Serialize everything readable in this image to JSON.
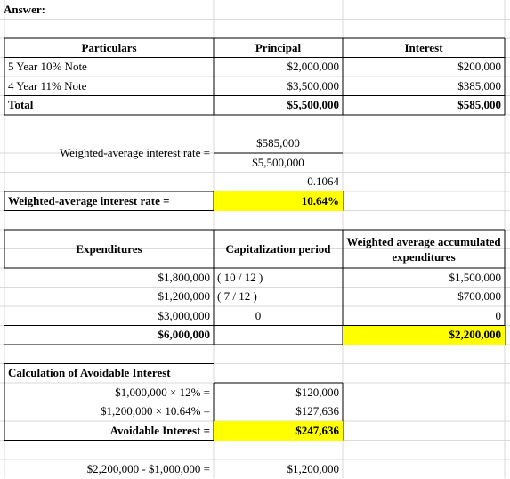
{
  "answer_label": "Answer:",
  "notes_table": {
    "headers": [
      "Particulars",
      "Principal",
      "Interest"
    ],
    "rows": [
      [
        "5 Year 10% Note",
        "$2,000,000",
        "$200,000"
      ],
      [
        "4 Year 11% Note",
        "$3,500,000",
        "$385,000"
      ],
      [
        "Total",
        "$5,500,000",
        "$585,000"
      ]
    ]
  },
  "rate_calc": {
    "label": "Weighted-average interest rate =",
    "numerator": "$585,000",
    "denominator": "$5,500,000",
    "decimal": "0.1064",
    "result_label": "Weighted-average interest rate =",
    "result": "10.64%"
  },
  "expenditures_table": {
    "headers": [
      "Expenditures",
      "Capitalization period",
      "Weighted average accumulated expenditures"
    ],
    "rows": [
      [
        "$1,800,000",
        "( 10 / 12 )",
        "$1,500,000"
      ],
      [
        "$1,200,000",
        "( 7 / 12 )",
        "$700,000"
      ],
      [
        "$3,000,000",
        "0",
        "0"
      ]
    ],
    "total": {
      "expenditures": "$6,000,000",
      "weighted": "$2,200,000"
    }
  },
  "avoidable_interest": {
    "title": "Calculation of Avoidable Interest",
    "rows": [
      [
        "$1,000,000 × 12% =",
        "$120,000"
      ],
      [
        "$1,200,000 × 10.64% =",
        "$127,636"
      ],
      [
        "Avoidable Interest =",
        "$247,636"
      ]
    ]
  },
  "excess": {
    "formula": "$2,200,000 - $1,000,000 =",
    "value": "$1,200,000"
  }
}
